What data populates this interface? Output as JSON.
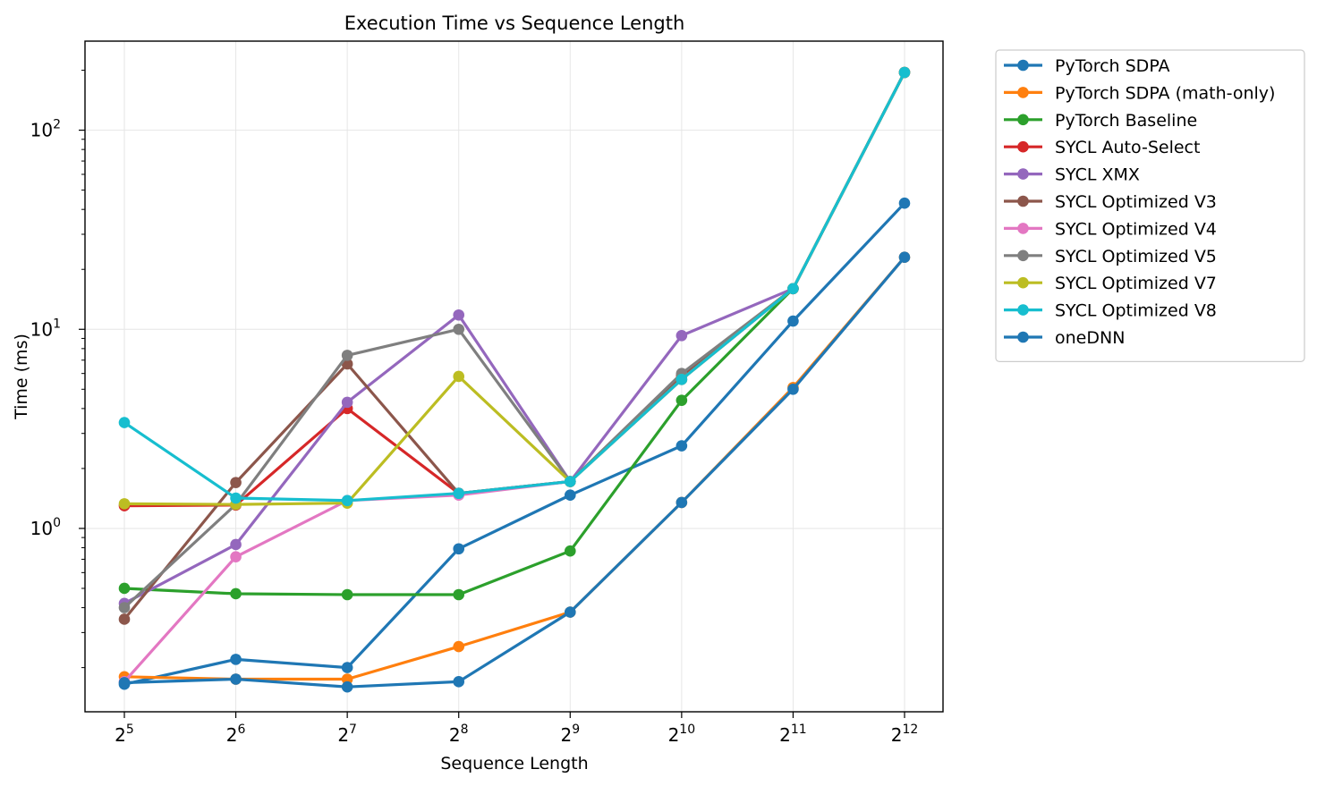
{
  "chart_data": {
    "type": "line",
    "title": "Execution Time vs Sequence Length",
    "xlabel": "Sequence Length",
    "ylabel": "Time (ms)",
    "x_scale": "log2",
    "y_scale": "log10",
    "x": [
      32,
      64,
      128,
      256,
      512,
      1024,
      2048,
      4096
    ],
    "x_tick_base": "2",
    "x_tick_exponents": [
      "5",
      "6",
      "7",
      "8",
      "9",
      "10",
      "11",
      "12"
    ],
    "y_tick_base": "10",
    "y_tick_exponents": [
      "0",
      "1",
      "2"
    ],
    "ylim": [
      0.12,
      280
    ],
    "grid": true,
    "legend_position": "outside upper right",
    "series": [
      {
        "name": "PyTorch SDPA",
        "color": "#1f77b4",
        "values": [
          0.165,
          0.22,
          0.2,
          0.79,
          1.47,
          2.6,
          11.0,
          43.0
        ]
      },
      {
        "name": "PyTorch SDPA (math-only)",
        "color": "#ff7f0e",
        "values": [
          0.18,
          0.175,
          0.175,
          0.255,
          0.38,
          1.35,
          5.1,
          23.0
        ]
      },
      {
        "name": "PyTorch Baseline",
        "color": "#2ca02c",
        "values": [
          0.5,
          0.47,
          0.465,
          0.465,
          0.77,
          4.4,
          16.0,
          195.0
        ]
      },
      {
        "name": "SYCL Auto-Select",
        "color": "#d62728",
        "values": [
          1.3,
          1.31,
          4.0,
          1.5,
          1.72,
          5.8,
          16.0,
          195.0
        ]
      },
      {
        "name": "SYCL XMX",
        "color": "#9467bd",
        "values": [
          0.42,
          0.83,
          4.3,
          11.8,
          1.72,
          9.3,
          16.0,
          195.0
        ]
      },
      {
        "name": "SYCL Optimized V3",
        "color": "#8c564b",
        "values": [
          0.35,
          1.7,
          6.7,
          1.5,
          1.72,
          5.9,
          16.0,
          195.0
        ]
      },
      {
        "name": "SYCL Optimized V4",
        "color": "#e377c2",
        "values": [
          0.17,
          0.72,
          1.38,
          1.47,
          1.72,
          5.6,
          16.0,
          195.0
        ]
      },
      {
        "name": "SYCL Optimized V5",
        "color": "#7f7f7f",
        "values": [
          0.4,
          1.32,
          7.4,
          10.0,
          1.72,
          6.0,
          16.0,
          195.0
        ]
      },
      {
        "name": "SYCL Optimized V7",
        "color": "#bcbd22",
        "values": [
          1.33,
          1.32,
          1.34,
          5.8,
          1.72,
          5.6,
          16.0,
          195.0
        ]
      },
      {
        "name": "SYCL Optimized V8",
        "color": "#17becf",
        "values": [
          3.4,
          1.42,
          1.38,
          1.5,
          1.72,
          5.6,
          16.0,
          195.0
        ]
      },
      {
        "name": "oneDNN",
        "color": "#1f77b4",
        "values": [
          0.168,
          0.175,
          0.16,
          0.17,
          0.38,
          1.35,
          5.0,
          23.0
        ]
      }
    ]
  }
}
